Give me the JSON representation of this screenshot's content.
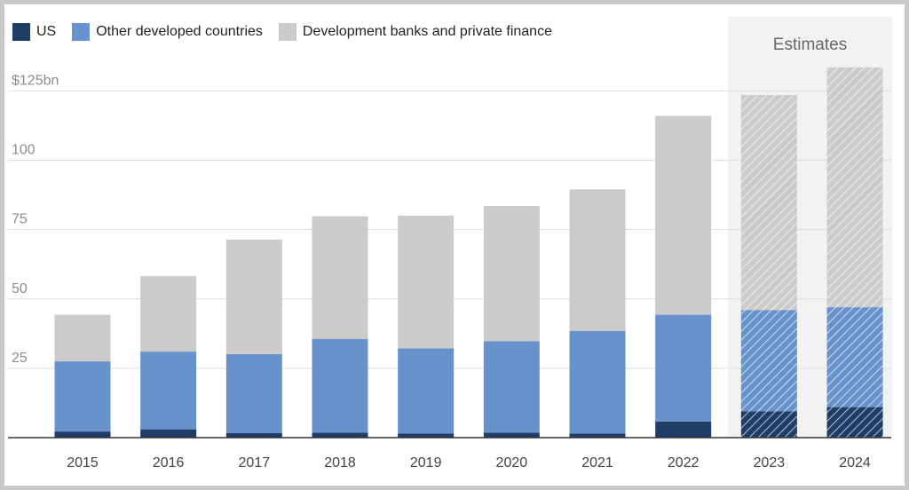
{
  "chart_data": {
    "type": "bar",
    "stacked": true,
    "categories": [
      "2015",
      "2016",
      "2017",
      "2018",
      "2019",
      "2020",
      "2021",
      "2022",
      "2023",
      "2024"
    ],
    "series": [
      {
        "name": "US",
        "color": "#1f3d66",
        "values": [
          2.2,
          3.0,
          1.6,
          1.8,
          1.5,
          1.8,
          1.5,
          5.8,
          9.5,
          11.0
        ]
      },
      {
        "name": "Other developed countries",
        "color": "#6792cb",
        "values": [
          25.3,
          28.0,
          28.5,
          33.8,
          30.7,
          33.0,
          37.0,
          38.5,
          36.5,
          36.0
        ]
      },
      {
        "name": "Development banks and private finance",
        "color": "#cbcbcb",
        "values": [
          16.8,
          27.2,
          41.3,
          44.2,
          47.8,
          48.7,
          51.0,
          71.7,
          77.5,
          86.5
        ]
      }
    ],
    "estimated_categories": [
      "2023",
      "2024"
    ],
    "estimates_label": "Estimates",
    "yticks": [
      25,
      50,
      75,
      100,
      125
    ],
    "ytick_labels": [
      "25",
      "50",
      "75",
      "100",
      "$125bn"
    ],
    "ylim": [
      0,
      137
    ],
    "grid": true,
    "legend_position": "top-left"
  }
}
